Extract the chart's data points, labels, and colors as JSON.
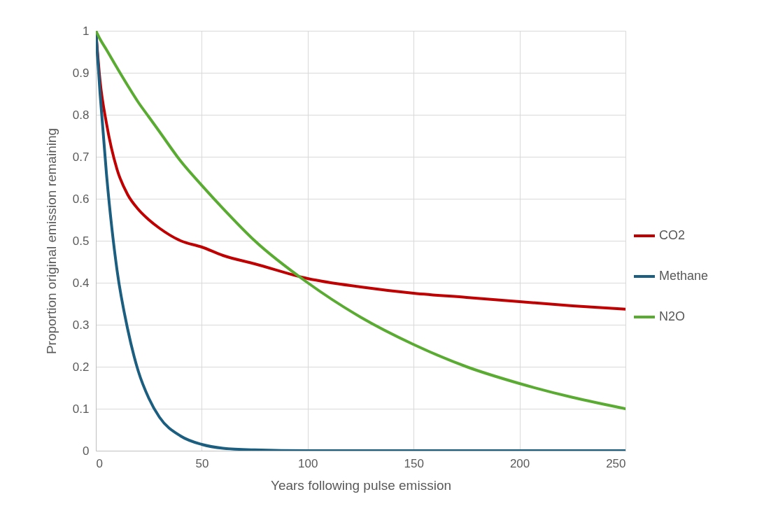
{
  "chart_data": {
    "type": "line",
    "xlabel": "Years following pulse emission",
    "ylabel": "Proportion original emission remaining",
    "x": [
      0,
      2,
      5,
      10,
      15,
      20,
      25,
      30,
      40,
      50,
      60,
      75,
      100,
      125,
      150,
      175,
      200,
      225,
      250
    ],
    "series": [
      {
        "name": "CO2",
        "color": "#c00000",
        "values": [
          1,
          0.88,
          0.78,
          0.67,
          0.61,
          0.575,
          0.55,
          0.53,
          0.5,
          0.485,
          0.465,
          0.445,
          0.41,
          0.39,
          0.375,
          0.365,
          0.355,
          0.345,
          0.337
        ]
      },
      {
        "name": "Methane",
        "color": "#1b5e80",
        "values": [
          1,
          0.85,
          0.66,
          0.43,
          0.29,
          0.19,
          0.125,
          0.08,
          0.035,
          0.015,
          0.006,
          0.002,
          0,
          0,
          0,
          0,
          0,
          0,
          0
        ]
      },
      {
        "name": "N2O",
        "color": "#5aab32",
        "values": [
          1,
          0.98,
          0.955,
          0.912,
          0.87,
          0.83,
          0.795,
          0.76,
          0.69,
          0.632,
          0.577,
          0.5,
          0.4,
          0.318,
          0.253,
          0.2,
          0.16,
          0.127,
          0.1
        ]
      }
    ],
    "xlim": [
      0,
      250
    ],
    "xticks": [
      0,
      50,
      100,
      150,
      200,
      250
    ],
    "ylim": [
      0,
      1
    ],
    "yticks": [
      0,
      0.1,
      0.2,
      0.3,
      0.4,
      0.5,
      0.6,
      0.7,
      0.8,
      0.9,
      1
    ],
    "grid": true,
    "legend": "right",
    "marker": "none",
    "line_style": "solid"
  }
}
